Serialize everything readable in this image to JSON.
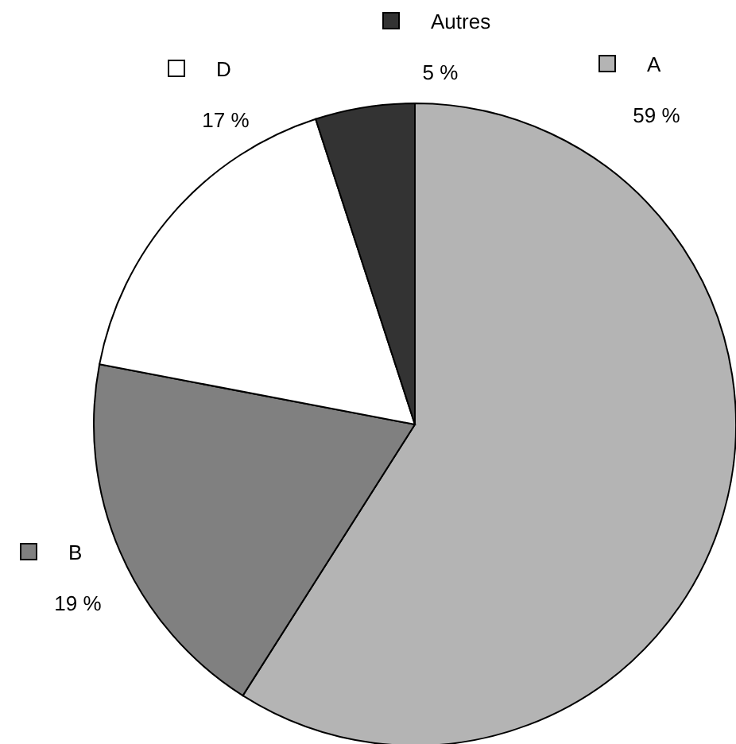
{
  "chart_data": {
    "type": "pie",
    "categories": [
      "A",
      "B",
      "D",
      "Autres"
    ],
    "values": [
      59,
      19,
      17,
      5
    ],
    "colors": [
      "#b4b4b4",
      "#808080",
      "#ffffff",
      "#333333"
    ],
    "value_labels": [
      "59 %",
      "19 %",
      "17 %",
      "5 %"
    ],
    "legend": "top"
  }
}
